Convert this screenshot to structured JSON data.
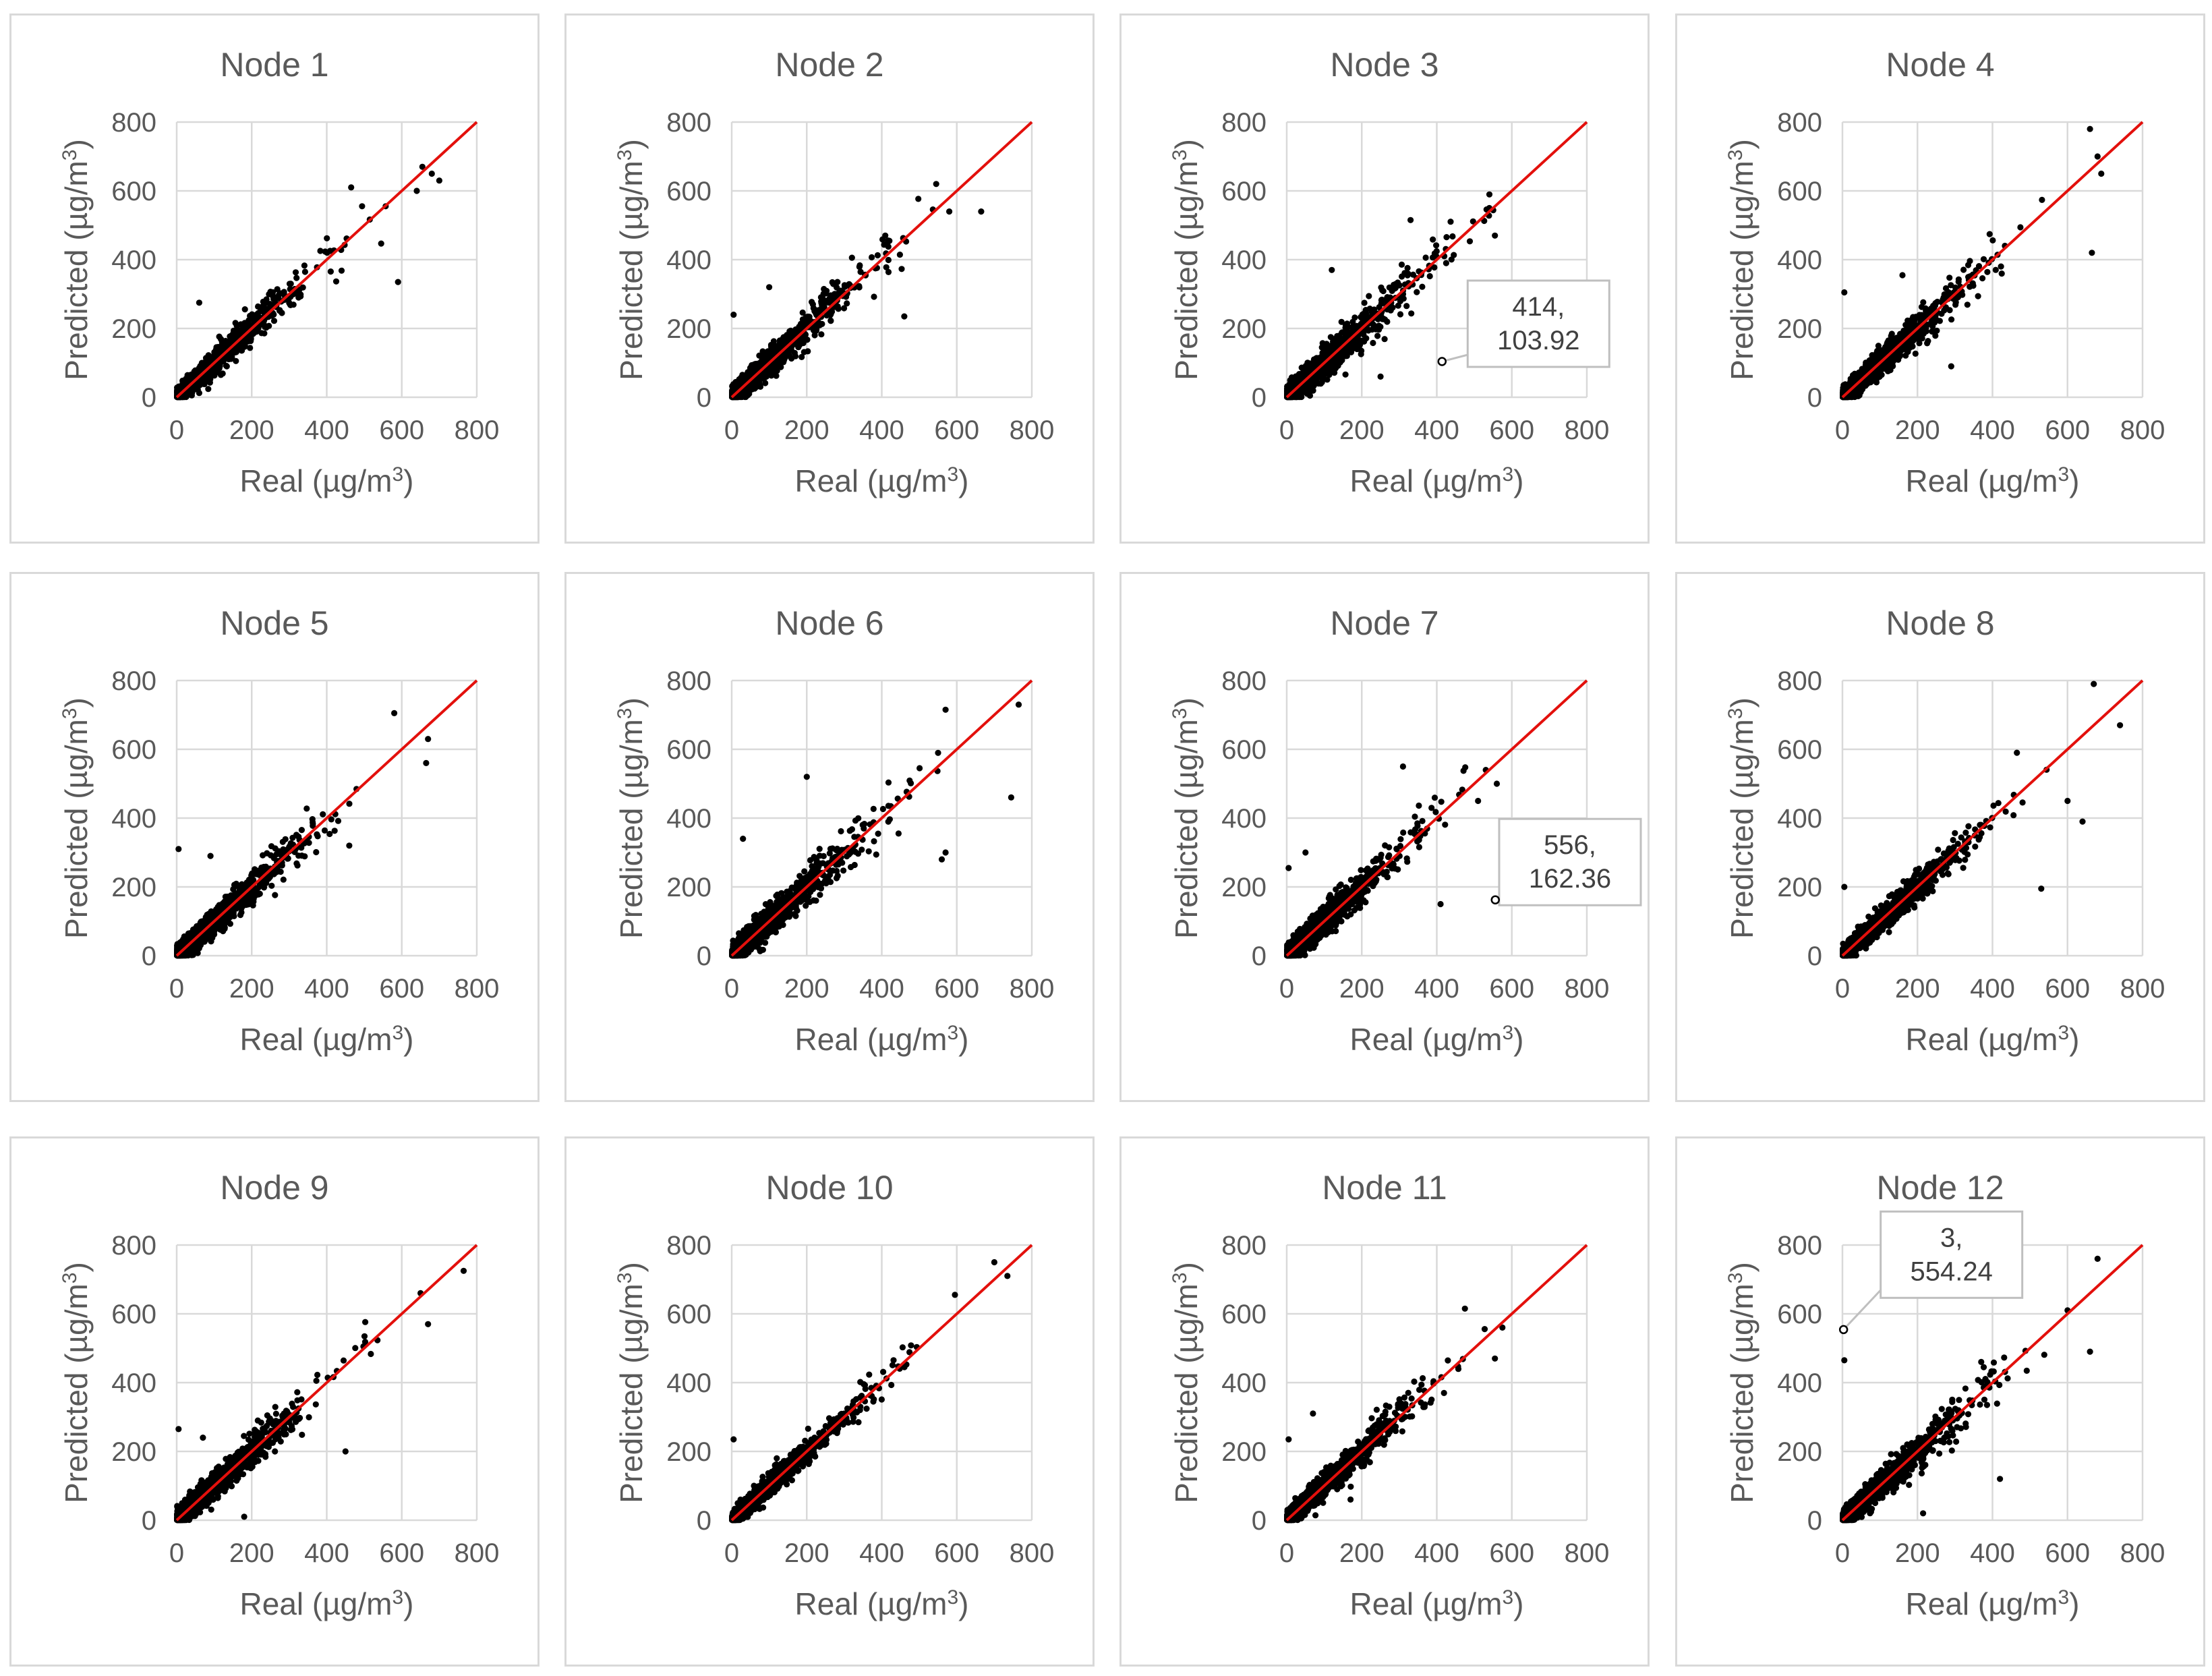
{
  "chart_data": [
    {
      "type": "scatter",
      "title": "Node 1",
      "xlabel": "Real (µg/m3)",
      "ylabel": "Predicted (µg/m3)",
      "xlim": [
        0,
        800
      ],
      "ylim": [
        0,
        800
      ],
      "xticks": [
        0,
        200,
        400,
        600,
        800
      ],
      "yticks": [
        0,
        200,
        400,
        600,
        800
      ],
      "reference_line": [
        [
          0,
          0
        ],
        [
          800,
          800
        ]
      ],
      "grid": true,
      "seed": 11,
      "scatter_sd": 28,
      "outliers": [
        [
          465,
          610
        ],
        [
          590,
          335
        ],
        [
          655,
          670
        ],
        [
          700,
          630
        ],
        [
          680,
          650
        ],
        [
          640,
          600
        ],
        [
          60,
          275
        ]
      ],
      "annotation": null
    },
    {
      "type": "scatter",
      "title": "Node 2",
      "xlabel": "Real (µg/m3)",
      "ylabel": "Predicted (µg/m3)",
      "xlim": [
        0,
        800
      ],
      "ylim": [
        0,
        800
      ],
      "xticks": [
        0,
        200,
        400,
        600,
        800
      ],
      "yticks": [
        0,
        200,
        400,
        600,
        800
      ],
      "reference_line": [
        [
          0,
          0
        ],
        [
          800,
          800
        ]
      ],
      "grid": true,
      "seed": 23,
      "scatter_sd": 30,
      "outliers": [
        [
          5,
          240
        ],
        [
          545,
          620
        ],
        [
          665,
          540
        ],
        [
          580,
          540
        ],
        [
          460,
          235
        ],
        [
          100,
          320
        ]
      ],
      "annotation": null
    },
    {
      "type": "scatter",
      "title": "Node 3",
      "xlabel": "Real (µg/m3)",
      "ylabel": "Predicted (µg/m3)",
      "xlim": [
        0,
        800
      ],
      "ylim": [
        0,
        800
      ],
      "xticks": [
        0,
        200,
        400,
        600,
        800
      ],
      "yticks": [
        0,
        200,
        400,
        600,
        800
      ],
      "reference_line": [
        [
          0,
          0
        ],
        [
          800,
          800
        ]
      ],
      "grid": true,
      "seed": 37,
      "scatter_sd": 34,
      "outliers": [
        [
          414,
          103.92
        ],
        [
          540,
          550
        ],
        [
          555,
          470
        ],
        [
          330,
          515
        ],
        [
          250,
          60
        ],
        [
          120,
          370
        ],
        [
          420,
          410
        ],
        [
          425,
          390
        ]
      ],
      "annotation": {
        "x": 414,
        "y": 103.92,
        "lines": [
          "414,",
          "103.92"
        ]
      }
    },
    {
      "type": "scatter",
      "title": "Node 4",
      "xlabel": "Real (µg/m3)",
      "ylabel": "Predicted (µg/m3)",
      "xlim": [
        0,
        800
      ],
      "ylim": [
        0,
        800
      ],
      "xticks": [
        0,
        200,
        400,
        600,
        800
      ],
      "yticks": [
        0,
        200,
        400,
        600,
        800
      ],
      "reference_line": [
        [
          0,
          0
        ],
        [
          800,
          800
        ]
      ],
      "grid": true,
      "seed": 41,
      "scatter_sd": 30,
      "outliers": [
        [
          5,
          305
        ],
        [
          660,
          780
        ],
        [
          665,
          420
        ],
        [
          690,
          650
        ],
        [
          680,
          700
        ],
        [
          160,
          355
        ],
        [
          290,
          90
        ]
      ],
      "annotation": null
    },
    {
      "type": "scatter",
      "title": "Node 5",
      "xlabel": "Real (µg/m3)",
      "ylabel": "Predicted (µg/m3)",
      "xlim": [
        0,
        800
      ],
      "ylim": [
        0,
        800
      ],
      "xticks": [
        0,
        200,
        400,
        600,
        800
      ],
      "yticks": [
        0,
        200,
        400,
        600,
        800
      ],
      "reference_line": [
        [
          0,
          0
        ],
        [
          800,
          800
        ]
      ],
      "grid": true,
      "seed": 53,
      "scatter_sd": 30,
      "outliers": [
        [
          5,
          310
        ],
        [
          580,
          705
        ],
        [
          665,
          560
        ],
        [
          670,
          630
        ],
        [
          460,
          320
        ],
        [
          90,
          290
        ]
      ],
      "annotation": null
    },
    {
      "type": "scatter",
      "title": "Node 6",
      "xlabel": "Real (µg/m3)",
      "ylabel": "Predicted (µg/m3)",
      "xlim": [
        0,
        800
      ],
      "ylim": [
        0,
        800
      ],
      "xticks": [
        0,
        200,
        400,
        600,
        800
      ],
      "yticks": [
        0,
        200,
        400,
        600,
        800
      ],
      "reference_line": [
        [
          0,
          0
        ],
        [
          800,
          800
        ]
      ],
      "grid": true,
      "seed": 67,
      "scatter_sd": 32,
      "outliers": [
        [
          765,
          730
        ],
        [
          745,
          460
        ],
        [
          570,
          300
        ],
        [
          560,
          280
        ],
        [
          570,
          715
        ],
        [
          30,
          340
        ],
        [
          200,
          520
        ]
      ],
      "annotation": null
    },
    {
      "type": "scatter",
      "title": "Node 7",
      "xlabel": "Real (µg/m3)",
      "ylabel": "Predicted (µg/m3)",
      "xlim": [
        0,
        800
      ],
      "ylim": [
        0,
        800
      ],
      "xticks": [
        0,
        200,
        400,
        600,
        800
      ],
      "yticks": [
        0,
        200,
        400,
        600,
        800
      ],
      "reference_line": [
        [
          0,
          0
        ],
        [
          800,
          800
        ]
      ],
      "grid": true,
      "seed": 71,
      "scatter_sd": 32,
      "outliers": [
        [
          556,
          162.36
        ],
        [
          5,
          255
        ],
        [
          310,
          550
        ],
        [
          560,
          500
        ],
        [
          510,
          450
        ],
        [
          410,
          150
        ],
        [
          50,
          300
        ]
      ],
      "annotation": {
        "x": 556,
        "y": 162.36,
        "lines": [
          "556,",
          "162.36"
        ]
      }
    },
    {
      "type": "scatter",
      "title": "Node 8",
      "xlabel": "Real (µg/m3)",
      "ylabel": "Predicted (µg/m3)",
      "xlim": [
        0,
        800
      ],
      "ylim": [
        0,
        800
      ],
      "xticks": [
        0,
        200,
        400,
        600,
        800
      ],
      "yticks": [
        0,
        200,
        400,
        600,
        800
      ],
      "reference_line": [
        [
          0,
          0
        ],
        [
          800,
          800
        ]
      ],
      "grid": true,
      "seed": 83,
      "scatter_sd": 28,
      "outliers": [
        [
          5,
          200
        ],
        [
          670,
          790
        ],
        [
          740,
          670
        ],
        [
          640,
          390
        ],
        [
          530,
          195
        ],
        [
          600,
          450
        ],
        [
          465,
          590
        ]
      ],
      "annotation": null
    },
    {
      "type": "scatter",
      "title": "Node 9",
      "xlabel": "Real (µg/m3)",
      "ylabel": "Predicted (µg/m3)",
      "xlim": [
        0,
        800
      ],
      "ylim": [
        0,
        800
      ],
      "xticks": [
        0,
        200,
        400,
        600,
        800
      ],
      "yticks": [
        0,
        200,
        400,
        600,
        800
      ],
      "reference_line": [
        [
          0,
          0
        ],
        [
          800,
          800
        ]
      ],
      "grid": true,
      "seed": 97,
      "scatter_sd": 30,
      "outliers": [
        [
          5,
          265
        ],
        [
          765,
          725
        ],
        [
          650,
          660
        ],
        [
          670,
          570
        ],
        [
          450,
          200
        ],
        [
          180,
          10
        ],
        [
          70,
          240
        ]
      ],
      "annotation": null
    },
    {
      "type": "scatter",
      "title": "Node 10",
      "xlabel": "Real (µg/m3)",
      "ylabel": "Predicted (µg/m3)",
      "xlim": [
        0,
        800
      ],
      "ylim": [
        0,
        800
      ],
      "xticks": [
        0,
        200,
        400,
        600,
        800
      ],
      "yticks": [
        0,
        200,
        400,
        600,
        800
      ],
      "reference_line": [
        [
          0,
          0
        ],
        [
          800,
          800
        ]
      ],
      "grid": true,
      "seed": 101,
      "scatter_sd": 24,
      "outliers": [
        [
          5,
          235
        ],
        [
          700,
          750
        ],
        [
          735,
          710
        ],
        [
          595,
          655
        ],
        [
          120,
          180
        ]
      ],
      "annotation": null
    },
    {
      "type": "scatter",
      "title": "Node 11",
      "xlabel": "Real (µg/m3)",
      "ylabel": "Predicted (µg/m3)",
      "xlim": [
        0,
        800
      ],
      "ylim": [
        0,
        800
      ],
      "xticks": [
        0,
        200,
        400,
        600,
        800
      ],
      "yticks": [
        0,
        200,
        400,
        600,
        800
      ],
      "reference_line": [
        [
          0,
          0
        ],
        [
          800,
          800
        ]
      ],
      "grid": true,
      "seed": 113,
      "scatter_sd": 28,
      "outliers": [
        [
          5,
          235
        ],
        [
          575,
          560
        ],
        [
          555,
          470
        ],
        [
          475,
          615
        ],
        [
          70,
          310
        ],
        [
          170,
          60
        ]
      ],
      "annotation": null
    },
    {
      "type": "scatter",
      "title": "Node 12",
      "xlabel": "Real (µg/m3)",
      "ylabel": "Predicted (µg/m3)",
      "xlim": [
        0,
        800
      ],
      "ylim": [
        0,
        800
      ],
      "xticks": [
        0,
        200,
        400,
        600,
        800
      ],
      "yticks": [
        0,
        200,
        400,
        600,
        800
      ],
      "reference_line": [
        [
          0,
          0
        ],
        [
          800,
          800
        ]
      ],
      "grid": true,
      "seed": 127,
      "scatter_sd": 30,
      "outliers": [
        [
          3,
          554.24
        ],
        [
          5,
          465
        ],
        [
          680,
          760
        ],
        [
          660,
          490
        ],
        [
          420,
          120
        ],
        [
          215,
          20
        ],
        [
          370,
          460
        ],
        [
          600,
          610
        ]
      ],
      "annotation": {
        "x": 3,
        "y": 554.24,
        "lines": [
          "3,",
          "554.24"
        ]
      }
    }
  ]
}
